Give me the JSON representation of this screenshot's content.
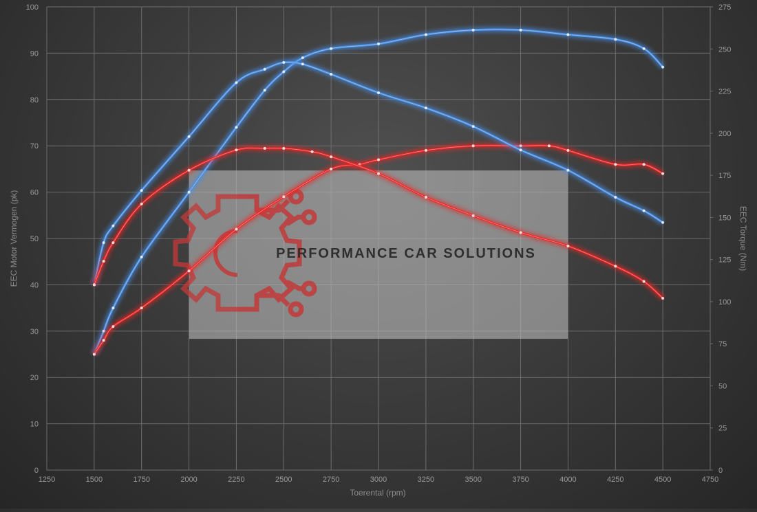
{
  "chart_data": {
    "type": "line",
    "xlabel": "Toerental (rpm)",
    "ylabel_left": "EEC Motor Vermogen (pk)",
    "ylabel_right": "EEC Torque (Nm)",
    "xlim": [
      1250,
      4750
    ],
    "ylim_left": [
      0,
      100
    ],
    "ylim_right": [
      0,
      275
    ],
    "x_ticks": [
      "1250",
      "1500",
      "1750",
      "2000",
      "2250",
      "2500",
      "2750",
      "3000",
      "3250",
      "3500",
      "3750",
      "4000",
      "4250",
      "4500",
      "4750"
    ],
    "y_left_ticks": [
      "0",
      "10",
      "20",
      "30",
      "40",
      "50",
      "60",
      "70",
      "80",
      "90",
      "100"
    ],
    "y_right_ticks": [
      "0",
      "25",
      "50",
      "75",
      "100",
      "125",
      "150",
      "175",
      "200",
      "225",
      "250",
      "275"
    ],
    "grid": true,
    "series": [
      {
        "axis": "left",
        "color": "#4a8fe6",
        "x": [
          1500,
          1550,
          1600,
          1750,
          2000,
          2250,
          2400,
          2500,
          2600,
          2750,
          3000,
          3250,
          3500,
          3750,
          4000,
          4250,
          4400,
          4500
        ],
        "values": [
          25,
          30,
          35,
          46,
          60,
          74,
          82,
          86,
          89,
          91,
          92,
          94,
          95,
          95,
          94,
          93,
          91,
          87
        ]
      },
      {
        "axis": "left",
        "color": "#e82626",
        "x": [
          1500,
          1550,
          1600,
          1750,
          2000,
          2250,
          2500,
          2750,
          2900,
          3000,
          3250,
          3500,
          3750,
          3900,
          4000,
          4250,
          4400,
          4500
        ],
        "values": [
          25,
          28,
          31,
          35,
          43,
          52,
          59,
          65,
          66,
          67,
          69,
          70,
          70,
          70,
          69,
          66,
          66,
          64
        ]
      },
      {
        "axis": "right",
        "color": "#4a8fe6",
        "x": [
          1500,
          1550,
          1600,
          1750,
          2000,
          2250,
          2400,
          2500,
          2600,
          2750,
          3000,
          3250,
          3500,
          3750,
          4000,
          4250,
          4400,
          4500
        ],
        "values": [
          110,
          135,
          145,
          166,
          198,
          230,
          238,
          242,
          241,
          235,
          224,
          215,
          204,
          190,
          178,
          162,
          154,
          147
        ]
      },
      {
        "axis": "right",
        "color": "#e82626",
        "x": [
          1500,
          1550,
          1600,
          1750,
          2000,
          2250,
          2400,
          2500,
          2650,
          2750,
          3000,
          3250,
          3500,
          3750,
          4000,
          4250,
          4400,
          4500
        ],
        "values": [
          110,
          124,
          135,
          158,
          178,
          190,
          191,
          191,
          189,
          186,
          176,
          162,
          151,
          141,
          133,
          121,
          112,
          102
        ]
      }
    ]
  },
  "watermark": {
    "text": "PERFORMANCE CAR SOLUTIONS",
    "logo_icon": "gear-circuit-logo-icon",
    "gear_color": "#c23a3a",
    "box_color": "#bdbdbd"
  }
}
